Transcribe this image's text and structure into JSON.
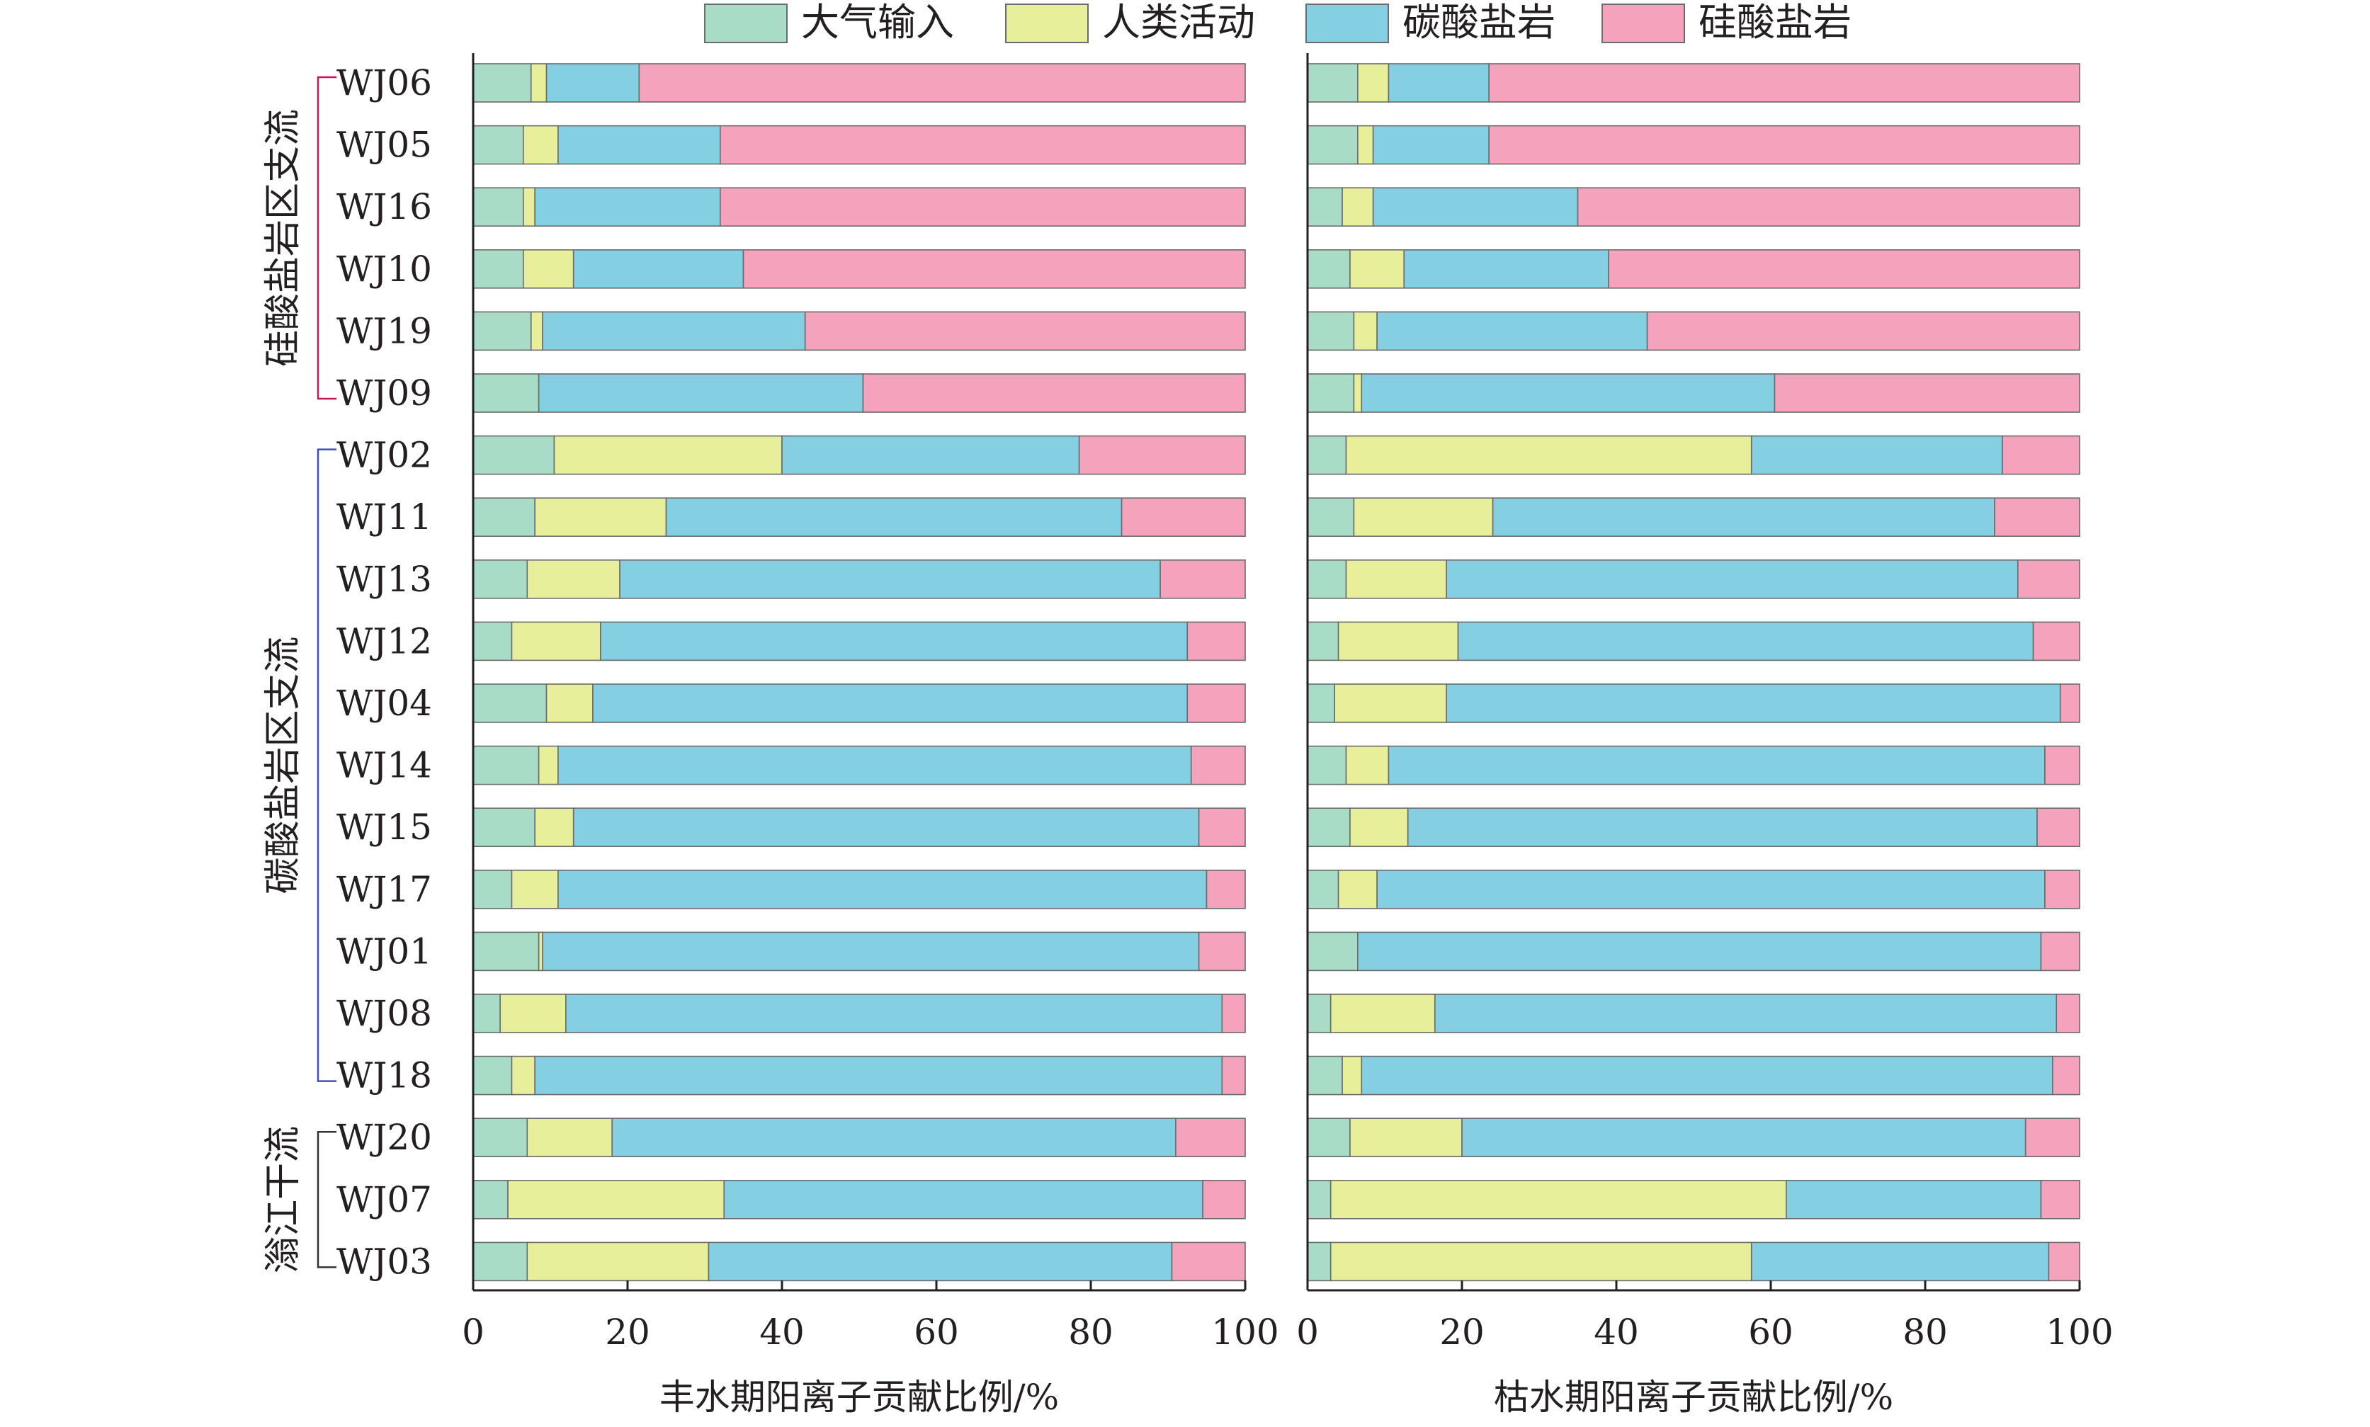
{
  "chart_data": {
    "type": "bar",
    "orientation": "horizontal-stacked",
    "legend": {
      "placement": "top",
      "entries": [
        {
          "name": "大气输入",
          "color": "#a9dcc6"
        },
        {
          "name": "人类活动",
          "color": "#e7ef9a"
        },
        {
          "name": "碳酸盐岩",
          "color": "#84cfe2"
        },
        {
          "name": "硅酸盐岩",
          "color": "#f5a3bc"
        }
      ]
    },
    "categories": [
      "WJ06",
      "WJ05",
      "WJ16",
      "WJ10",
      "WJ19",
      "WJ09",
      "WJ02",
      "WJ11",
      "WJ13",
      "WJ12",
      "WJ04",
      "WJ14",
      "WJ15",
      "WJ17",
      "WJ01",
      "WJ08",
      "WJ18",
      "WJ20",
      "WJ07",
      "WJ03"
    ],
    "groups": [
      {
        "label": "硅酸盐岩区支流",
        "first": 0,
        "last": 5,
        "color": "#c2185b"
      },
      {
        "label": "碳酸盐岩区支流",
        "first": 6,
        "last": 16,
        "color": "#3f51b5"
      },
      {
        "label": "滃江干流",
        "first": 17,
        "last": 19,
        "color": "#333333"
      }
    ],
    "panels": [
      {
        "xlabel": "丰水期阳离子贡献比例/%",
        "xlim": [
          0,
          100
        ],
        "ticks": [
          "0",
          "20",
          "40",
          "60",
          "80",
          "100"
        ],
        "series": [
          {
            "name": "大气输入",
            "values": [
              7.5,
              6.5,
              6.5,
              6.5,
              7.5,
              8.5,
              10.5,
              8,
              7,
              5,
              9.5,
              8.5,
              8,
              5,
              8.5,
              3.5,
              5,
              7,
              4.5,
              7
            ]
          },
          {
            "name": "人类活动",
            "values": [
              2,
              4.5,
              1.5,
              6.5,
              1.5,
              0,
              29.5,
              17,
              12,
              11.5,
              6,
              2.5,
              5,
              6,
              0.5,
              8.5,
              3,
              11,
              28,
              23.5
            ]
          },
          {
            "name": "碳酸盐岩",
            "values": [
              12,
              21,
              24,
              22,
              34,
              42,
              38.5,
              59,
              70,
              76,
              77,
              82,
              81,
              84,
              85,
              85,
              89,
              73,
              62,
              60
            ]
          },
          {
            "name": "硅酸盐岩",
            "values": [
              78.5,
              68,
              68,
              65,
              57,
              49.5,
              21.5,
              16,
              11,
              7.5,
              7.5,
              7,
              6,
              5,
              6,
              3,
              3,
              9,
              5.5,
              9.5
            ]
          }
        ]
      },
      {
        "xlabel": "枯水期阳离子贡献比例/%",
        "xlim": [
          0,
          100
        ],
        "ticks": [
          "0",
          "20",
          "40",
          "60",
          "80",
          "100"
        ],
        "series": [
          {
            "name": "大气输入",
            "values": [
              6.5,
              6.5,
              4.5,
              5.5,
              6,
              6,
              5,
              6,
              5,
              4,
              3.5,
              5,
              5.5,
              4,
              6.5,
              3,
              4.5,
              5.5,
              3,
              3
            ]
          },
          {
            "name": "人类活动",
            "values": [
              4,
              2,
              4,
              7,
              3,
              1,
              52.5,
              18,
              13,
              15.5,
              14.5,
              5.5,
              7.5,
              5,
              0,
              13.5,
              2.5,
              14.5,
              59,
              54.5
            ]
          },
          {
            "name": "碳酸盐岩",
            "values": [
              13,
              15,
              26.5,
              26.5,
              35,
              53.5,
              32.5,
              65,
              74,
              74.5,
              79.5,
              85,
              81.5,
              86.5,
              88.5,
              80.5,
              89.5,
              73,
              33,
              38.5
            ]
          },
          {
            "name": "硅酸盐岩",
            "values": [
              76.5,
              76.5,
              65,
              61,
              56,
              39.5,
              10,
              11,
              8,
              6,
              2.5,
              4.5,
              5.5,
              4.5,
              5,
              3,
              3.5,
              7,
              5,
              4
            ]
          }
        ]
      }
    ]
  }
}
